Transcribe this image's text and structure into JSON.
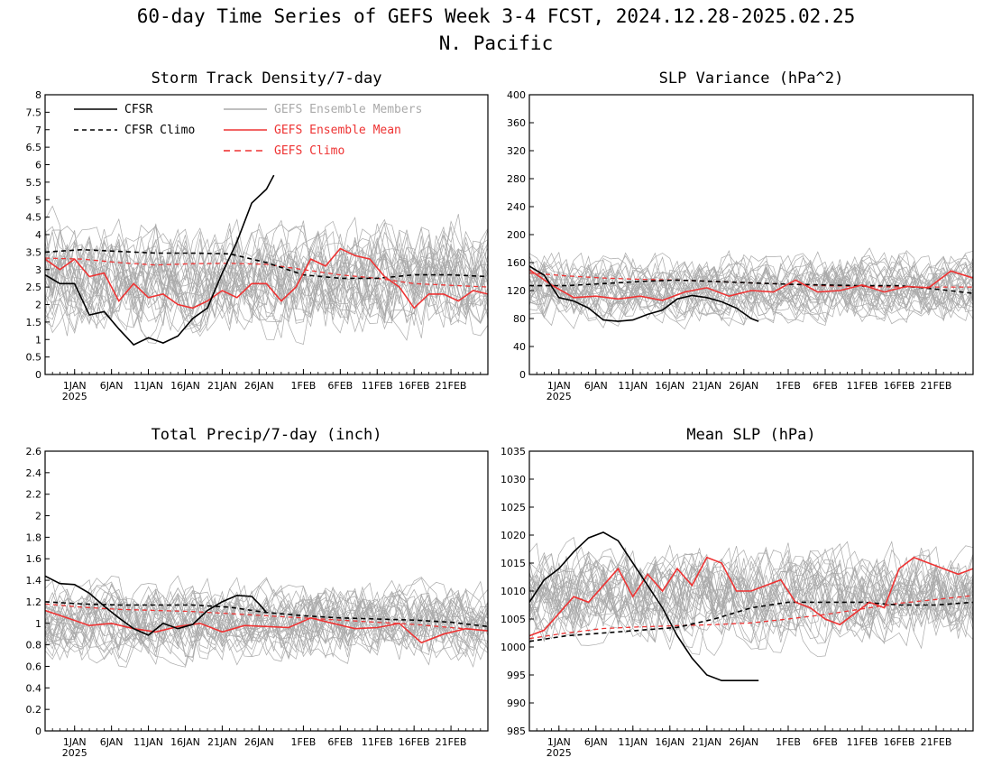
{
  "title": "60-day Time Series of GEFS Week 3-4 FCST, 2024.12.28-2025.02.25",
  "subtitle": "N. Pacific",
  "x_axis": {
    "tick_labels": [
      "1JAN",
      "6JAN",
      "11JAN",
      "16JAN",
      "21JAN",
      "26JAN",
      "1FEB",
      "6FEB",
      "11FEB",
      "16FEB",
      "21FEB"
    ],
    "tick_days": [
      4,
      9,
      14,
      19,
      24,
      29,
      35,
      40,
      45,
      50,
      55
    ],
    "year_label": "2025",
    "start_date": "2024-12-28",
    "num_days": 60
  },
  "colors": {
    "cfsr": "#000000",
    "cfsr_climo": "#000000",
    "members": "#aaaaaa",
    "ens_mean": "#ee3333",
    "gefs_climo": "#ee3333"
  },
  "legend": {
    "cfsr": "CFSR",
    "cfsr_climo": "CFSR Climo",
    "members": "GEFS Ensemble Members",
    "ens_mean": "GEFS Ensemble Mean",
    "gefs_climo": "GEFS Climo"
  },
  "chart_data": [
    {
      "type": "line",
      "title": "Storm Track Density/7-day",
      "ylim": [
        0,
        8
      ],
      "yticks": [
        "0",
        "0.5",
        "1",
        "1.5",
        "2",
        "2.5",
        "3",
        "3.5",
        "4",
        "4.5",
        "5",
        "5.5",
        "6",
        "6.5",
        "7",
        "7.5",
        "8"
      ],
      "member_mean": 2.8,
      "member_spread": 1.3,
      "member_count": 30,
      "series": [
        {
          "name": "CFSR",
          "x": [
            0,
            2,
            4,
            6,
            8,
            10,
            12,
            14,
            16,
            18,
            20,
            22,
            24,
            26,
            28,
            30,
            31
          ],
          "values": [
            2.85,
            2.6,
            2.6,
            1.7,
            1.8,
            1.3,
            0.85,
            1.05,
            0.9,
            1.1,
            1.6,
            1.9,
            2.9,
            3.8,
            4.9,
            5.3,
            5.7
          ]
        },
        {
          "name": "CFSR Climo",
          "x": [
            0,
            5,
            10,
            15,
            20,
            25,
            30,
            35,
            40,
            45,
            50,
            55,
            60
          ],
          "values": [
            3.5,
            3.57,
            3.52,
            3.47,
            3.47,
            3.45,
            3.2,
            2.85,
            2.75,
            2.75,
            2.85,
            2.85,
            2.8
          ]
        },
        {
          "name": "GEFS Ensemble Mean",
          "x": [
            0,
            2,
            4,
            6,
            8,
            10,
            12,
            14,
            16,
            18,
            20,
            22,
            24,
            26,
            28,
            30,
            32,
            34,
            36,
            38,
            40,
            42,
            44,
            46,
            48,
            50,
            52,
            54,
            56,
            58,
            60
          ],
          "values": [
            3.3,
            3.0,
            3.3,
            2.8,
            2.9,
            2.1,
            2.6,
            2.2,
            2.3,
            2.0,
            1.9,
            2.1,
            2.4,
            2.2,
            2.6,
            2.6,
            2.1,
            2.5,
            3.3,
            3.1,
            3.6,
            3.4,
            3.3,
            2.8,
            2.5,
            1.9,
            2.3,
            2.3,
            2.1,
            2.4,
            2.3
          ]
        },
        {
          "name": "GEFS Climo",
          "x": [
            0,
            5,
            10,
            15,
            20,
            25,
            30,
            35,
            40,
            45,
            50,
            55,
            60
          ],
          "values": [
            3.33,
            3.3,
            3.2,
            3.13,
            3.17,
            3.18,
            3.15,
            3.0,
            2.85,
            2.75,
            2.6,
            2.55,
            2.5
          ]
        }
      ]
    },
    {
      "type": "line",
      "title": "SLP Variance (hPa^2)",
      "ylim": [
        0,
        400
      ],
      "yticks": [
        "0",
        "40",
        "80",
        "120",
        "160",
        "200",
        "240",
        "280",
        "320",
        "360",
        "400"
      ],
      "member_mean": 125,
      "member_spread": 40,
      "member_count": 30,
      "series": [
        {
          "name": "CFSR",
          "x": [
            0,
            2,
            4,
            6,
            8,
            10,
            12,
            14,
            16,
            18,
            20,
            22,
            24,
            26,
            28,
            30,
            31
          ],
          "values": [
            155,
            142,
            110,
            105,
            95,
            78,
            76,
            78,
            86,
            92,
            108,
            113,
            110,
            104,
            95,
            80,
            76
          ]
        },
        {
          "name": "CFSR Climo",
          "x": [
            0,
            5,
            10,
            15,
            20,
            25,
            30,
            35,
            40,
            45,
            50,
            55,
            60
          ],
          "values": [
            127,
            127,
            130,
            133,
            135,
            133,
            131,
            129,
            128,
            127,
            127,
            122,
            116
          ]
        },
        {
          "name": "GEFS Ensemble Mean",
          "x": [
            0,
            3,
            6,
            9,
            12,
            15,
            18,
            21,
            24,
            27,
            30,
            33,
            36,
            39,
            42,
            45,
            48,
            51,
            54,
            57,
            60
          ],
          "values": [
            150,
            128,
            110,
            112,
            108,
            112,
            106,
            118,
            124,
            112,
            120,
            118,
            135,
            118,
            120,
            128,
            118,
            126,
            124,
            148,
            138
          ]
        },
        {
          "name": "GEFS Climo",
          "x": [
            0,
            5,
            10,
            15,
            20,
            25,
            30,
            35,
            40,
            45,
            50,
            55,
            60
          ],
          "values": [
            145,
            141,
            138,
            136,
            135,
            133,
            131,
            129,
            127,
            126,
            125,
            125,
            125
          ]
        }
      ]
    },
    {
      "type": "line",
      "title": "Total Precip/7-day (inch)",
      "ylim": [
        0,
        2.6
      ],
      "yticks": [
        "0",
        "0.2",
        "0.4",
        "0.6",
        "0.8",
        "1",
        "1.2",
        "1.4",
        "1.6",
        "1.8",
        "2",
        "2.2",
        "2.4",
        "2.6"
      ],
      "member_mean": 1.0,
      "member_spread": 0.3,
      "member_count": 30,
      "series": [
        {
          "name": "CFSR",
          "x": [
            0,
            2,
            4,
            6,
            8,
            10,
            12,
            14,
            16,
            18,
            20,
            22,
            24,
            26,
            28,
            29,
            30
          ],
          "values": [
            1.44,
            1.37,
            1.36,
            1.28,
            1.16,
            1.05,
            0.95,
            0.89,
            1.0,
            0.95,
            0.99,
            1.12,
            1.2,
            1.26,
            1.25,
            1.18,
            1.1
          ]
        },
        {
          "name": "CFSR Climo",
          "x": [
            0,
            5,
            10,
            15,
            20,
            25,
            30,
            35,
            40,
            45,
            50,
            55,
            60
          ],
          "values": [
            1.2,
            1.18,
            1.17,
            1.17,
            1.17,
            1.15,
            1.1,
            1.07,
            1.05,
            1.04,
            1.03,
            1.01,
            0.97
          ]
        },
        {
          "name": "GEFS Ensemble Mean",
          "x": [
            0,
            3,
            6,
            9,
            12,
            15,
            18,
            21,
            24,
            27,
            30,
            33,
            36,
            39,
            42,
            45,
            48,
            51,
            54,
            57,
            60
          ],
          "values": [
            1.12,
            1.05,
            0.98,
            1.0,
            0.95,
            0.92,
            0.97,
            1.0,
            0.92,
            0.98,
            0.97,
            0.96,
            1.05,
            1.0,
            0.95,
            0.96,
            1.0,
            0.82,
            0.9,
            0.95,
            0.93
          ]
        },
        {
          "name": "GEFS Climo",
          "x": [
            0,
            5,
            10,
            15,
            20,
            25,
            30,
            35,
            40,
            45,
            50,
            55,
            60
          ],
          "values": [
            1.18,
            1.15,
            1.13,
            1.12,
            1.11,
            1.09,
            1.07,
            1.05,
            1.03,
            1.01,
            0.99,
            0.96,
            0.93
          ]
        }
      ]
    },
    {
      "type": "line",
      "title": "Mean SLP (hPa)",
      "ylim": [
        985,
        1035
      ],
      "yticks": [
        "985",
        "990",
        "995",
        "1000",
        "1005",
        "1010",
        "1015",
        "1020",
        "1025",
        "1030",
        "1035"
      ],
      "member_mean": 1009,
      "member_spread": 7,
      "member_count": 30,
      "series": [
        {
          "name": "CFSR",
          "x": [
            0,
            2,
            4,
            6,
            8,
            10,
            12,
            14,
            16,
            18,
            20,
            22,
            24,
            26,
            28,
            30,
            31
          ],
          "values": [
            1008,
            1012,
            1014,
            1017,
            1019.5,
            1020.5,
            1019,
            1015,
            1011,
            1007,
            1002,
            998,
            995,
            994,
            994,
            994,
            994
          ]
        },
        {
          "name": "CFSR Climo",
          "x": [
            0,
            5,
            10,
            15,
            20,
            25,
            30,
            35,
            40,
            45,
            50,
            55,
            60
          ],
          "values": [
            1001,
            1002,
            1002.5,
            1003,
            1003.5,
            1005,
            1007,
            1008,
            1008,
            1008,
            1007.5,
            1007.5,
            1008
          ]
        },
        {
          "name": "GEFS Ensemble Mean",
          "x": [
            0,
            2,
            4,
            6,
            8,
            10,
            12,
            14,
            16,
            18,
            20,
            22,
            24,
            26,
            28,
            30,
            32,
            34,
            36,
            38,
            40,
            42,
            44,
            46,
            48,
            50,
            52,
            54,
            56,
            58,
            60
          ],
          "values": [
            1002,
            1003,
            1006,
            1009,
            1008,
            1011,
            1014,
            1009,
            1013,
            1010,
            1014,
            1011,
            1016,
            1015,
            1010,
            1010,
            1011,
            1012,
            1008,
            1007,
            1005,
            1004,
            1006,
            1008,
            1007,
            1014,
            1016,
            1015,
            1014,
            1013,
            1014
          ]
        },
        {
          "name": "GEFS Climo",
          "x": [
            0,
            5,
            10,
            15,
            20,
            25,
            30,
            35,
            40,
            45,
            50,
            55,
            60
          ],
          "values": [
            1001.5,
            1002.5,
            1003.3,
            1003.6,
            1003.8,
            1004,
            1004.3,
            1005,
            1005.8,
            1006.8,
            1007.8,
            1008.5,
            1009.2
          ]
        }
      ]
    }
  ]
}
